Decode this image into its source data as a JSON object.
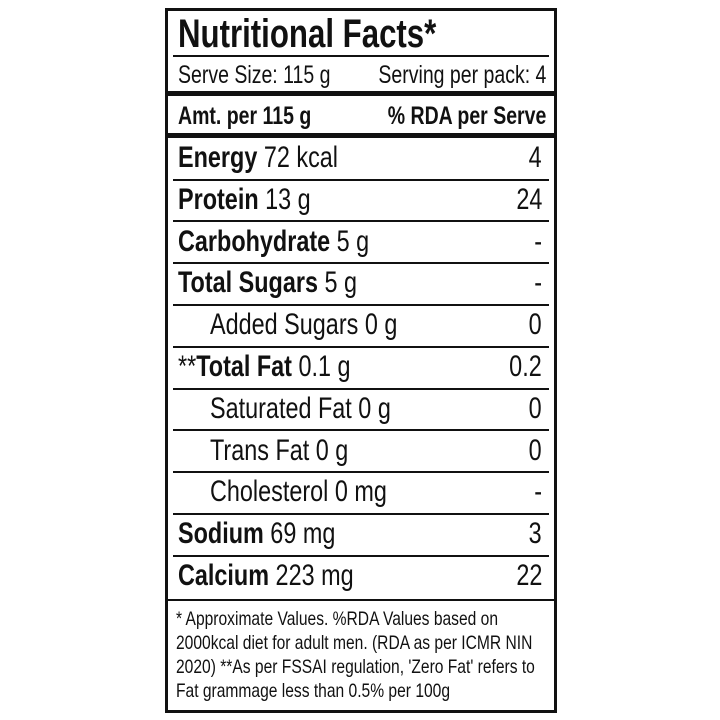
{
  "title": "Nutritional Facts*",
  "serve_size": "Serve Size: 115 g",
  "servings_per_pack": "Serving per pack: 4",
  "header": {
    "amount": "Amt. per 115 g",
    "rda": "% RDA per Serve"
  },
  "rows": [
    {
      "name": "Energy",
      "amount": "72 kcal",
      "rda": "4",
      "bold": true,
      "indent": false,
      "prefix": ""
    },
    {
      "name": "Protein",
      "amount": "13 g",
      "rda": "24",
      "bold": true,
      "indent": false,
      "prefix": ""
    },
    {
      "name": "Carbohydrate",
      "amount": "5 g",
      "rda": "-",
      "bold": true,
      "indent": false,
      "prefix": ""
    },
    {
      "name": "Total Sugars",
      "amount": "5 g",
      "rda": "-",
      "bold": true,
      "indent": false,
      "prefix": ""
    },
    {
      "name": "Added Sugars",
      "amount": "0 g",
      "rda": "0",
      "bold": false,
      "indent": true,
      "prefix": ""
    },
    {
      "name": "Total Fat",
      "amount": "0.1 g",
      "rda": "0.2",
      "bold": true,
      "indent": false,
      "prefix": "**"
    },
    {
      "name": "Saturated Fat",
      "amount": "0 g",
      "rda": "0",
      "bold": false,
      "indent": true,
      "prefix": ""
    },
    {
      "name": "Trans Fat",
      "amount": "0 g",
      "rda": "0",
      "bold": false,
      "indent": true,
      "prefix": ""
    },
    {
      "name": "Cholesterol",
      "amount": "0 mg",
      "rda": "-",
      "bold": false,
      "indent": true,
      "prefix": ""
    },
    {
      "name": "Sodium",
      "amount": "69 mg",
      "rda": "3",
      "bold": true,
      "indent": false,
      "prefix": ""
    },
    {
      "name": "Calcium",
      "amount": "223 mg",
      "rda": "22",
      "bold": true,
      "indent": false,
      "prefix": ""
    }
  ],
  "footnote": "* Approximate Values. %RDA Values based on 2000kcal diet for adult men. (RDA as per ICMR NIN 2020) **As per FSSAI regulation, 'Zero Fat' refers to Fat grammage less than 0.5% per 100g"
}
